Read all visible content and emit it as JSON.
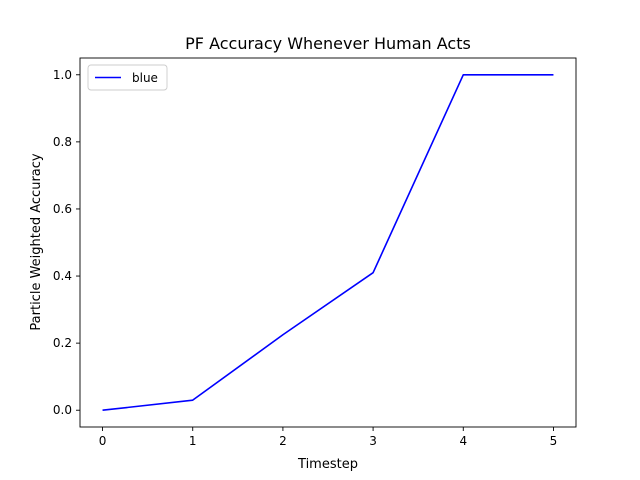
{
  "chart_data": {
    "type": "line",
    "title": "PF Accuracy Whenever Human Acts",
    "xlabel": "Timestep",
    "ylabel": "Particle Weighted Accuracy",
    "x": [
      0,
      1,
      2,
      3,
      4,
      5
    ],
    "series": [
      {
        "name": "blue",
        "color": "#0000ff",
        "values": [
          0.0,
          0.03,
          0.225,
          0.41,
          1.0,
          1.0
        ]
      }
    ],
    "xlim": [
      -0.25,
      5.25
    ],
    "ylim": [
      -0.05,
      1.05
    ],
    "xticks": [
      0,
      1,
      2,
      3,
      4,
      5
    ],
    "xtick_labels": [
      "0",
      "1",
      "2",
      "3",
      "4",
      "5"
    ],
    "yticks": [
      0.0,
      0.2,
      0.4,
      0.6,
      0.8,
      1.0
    ],
    "ytick_labels": [
      "0.0",
      "0.2",
      "0.4",
      "0.6",
      "0.8",
      "1.0"
    ],
    "grid": false,
    "legend_position": "top-left"
  }
}
